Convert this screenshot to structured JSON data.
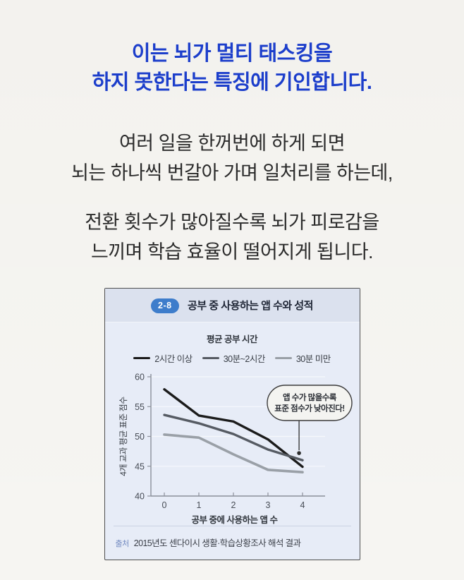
{
  "page": {
    "headline": "이는 뇌가 멀티 태스킹을\n하지 못한다는 특징에 기인합니다.",
    "paragraph1": "여러 일을 한꺼번에 하게 되면\n뇌는 하나씩 번갈아 가며 일처리를 하는데,",
    "paragraph2": "전환 횟수가 많아질수록 뇌가 피로감을\n느끼며 학습 효율이 떨어지게 됩니다.",
    "colors": {
      "headline": "#1c3ecb",
      "body_text": "#2b2b2b",
      "background": "#f3f2ee"
    }
  },
  "chart_card": {
    "badge": "2-8",
    "title": "공부 중 사용하는 앱 수와 성적",
    "source_label": "출처",
    "source_text": "2015년도 센다이시 생활·학습상황조사 해석 결과",
    "colors": {
      "card_background": "#e7ecf7",
      "header_background": "#dbe1ee",
      "badge_background": "#3e7dcb"
    }
  },
  "chart_data": {
    "type": "line",
    "title": "공부 중 사용하는 앱 수와 성적",
    "x": [
      0,
      1,
      2,
      3,
      4
    ],
    "series": [
      {
        "name": "2시간 이상",
        "values": [
          57.9,
          53.5,
          52.5,
          49.5,
          44.9
        ],
        "color": "#1b1b1b",
        "width": 3.4
      },
      {
        "name": "30분~2시간",
        "values": [
          53.6,
          52.2,
          50.4,
          47.8,
          46.0
        ],
        "color": "#565b63",
        "width": 3.4
      },
      {
        "name": "30분 미만",
        "values": [
          50.3,
          49.8,
          47.0,
          44.4,
          44.0
        ],
        "color": "#9aa0a7",
        "width": 3.6
      }
    ],
    "legend_title": "평균 공부 시간",
    "legend_position": "top",
    "xlabel": "공부 중에 사용하는 앱 수",
    "ylabel": "4개 교과 평균 표준 점수",
    "ylim": [
      40,
      60
    ],
    "yticks": [
      40,
      45,
      50,
      55,
      60
    ],
    "grid": true,
    "annotation": {
      "text": "앱 수가 많을수록\n표준 점수가 낮아진다!",
      "target_x": 3.9,
      "target_y": 47.2
    }
  }
}
